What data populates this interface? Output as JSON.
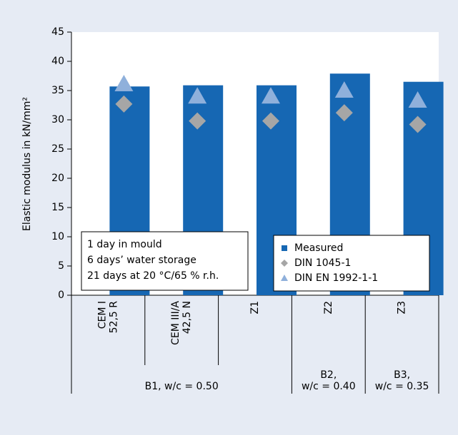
{
  "chart_data": {
    "type": "bar",
    "y_label": "Elastic modulus  in kN/mm²",
    "categories": [
      [
        "CEM I",
        "52,5 R"
      ],
      [
        "CEM III/A",
        "42,5 N"
      ],
      [
        "Z1"
      ],
      [
        "Z2"
      ],
      [
        "Z3"
      ]
    ],
    "groups": [
      [
        "B1, w/c = 0.50"
      ],
      [
        "B2,",
        "w/c = 0.40"
      ],
      [
        "B3,",
        "w/c = 0.35"
      ]
    ],
    "series": [
      {
        "name": "Measured",
        "color": "#1667b3",
        "marker": "bar",
        "values": [
          35.7,
          35.9,
          35.9,
          37.9,
          36.5
        ]
      },
      {
        "name": "DIN 1045-1",
        "color": "#a6a6a6",
        "marker": "diamond",
        "values": [
          32.7,
          29.8,
          29.8,
          31.2,
          29.2
        ]
      },
      {
        "name": "DIN EN 1992-1-1",
        "color": "#8fb0db",
        "marker": "triangle",
        "values": [
          36.1,
          34.0,
          34.0,
          35.0,
          33.3
        ]
      }
    ],
    "annotation": [
      "1 day in mould",
      "6 days’ water storage",
      " 21 days at 20 °C/65 % r.h."
    ],
    "ylim": [
      0,
      45
    ],
    "yticks": [
      0,
      5,
      10,
      15,
      20,
      25,
      30,
      35,
      40,
      45
    ],
    "grid": false,
    "legend": "lower right"
  }
}
